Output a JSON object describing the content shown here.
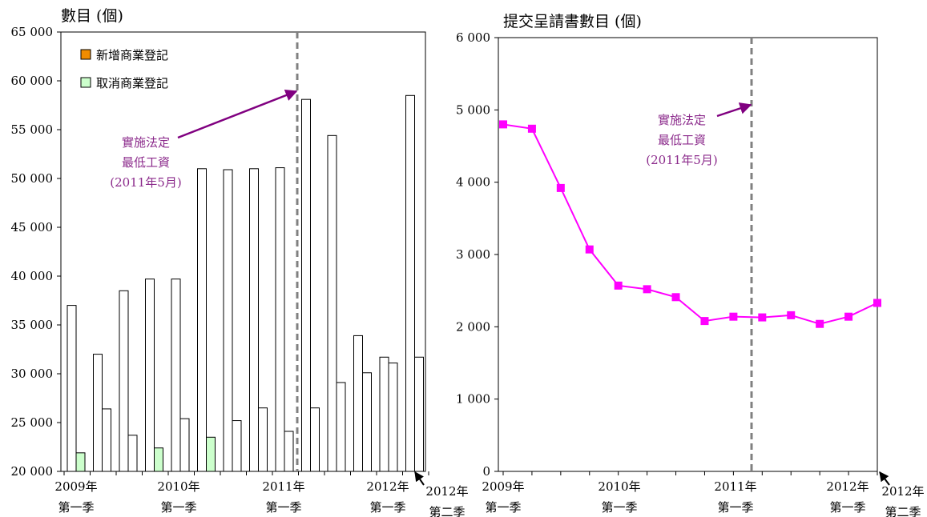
{
  "chart_data": [
    {
      "type": "bar",
      "title": "數目 (個)",
      "categories": [
        "2009Q1",
        "2009Q2",
        "2009Q3",
        "2009Q4",
        "2010Q1",
        "2010Q2",
        "2010Q3",
        "2010Q4",
        "2011Q1",
        "2011Q2",
        "2011Q3",
        "2011Q4",
        "2012Q1",
        "2012Q2"
      ],
      "series": [
        {
          "name": "新增商業登記",
          "color": "#f08c00",
          "values": [
            37000,
            32000,
            38500,
            39700,
            39700,
            51000,
            50900,
            51000,
            51100,
            58100,
            54400,
            33900,
            31700,
            58500
          ]
        },
        {
          "name": "取消商業登記",
          "color": "#ccffcc",
          "values": [
            21900,
            26400,
            23700,
            22400,
            25400,
            23500,
            25200,
            26500,
            24100,
            26500,
            29100,
            30100,
            31100,
            31700
          ]
        }
      ],
      "ylim": [
        20000,
        65000
      ],
      "yticks": [
        "20 000",
        "25 000",
        "30 000",
        "35 000",
        "40 000",
        "45 000",
        "50 000",
        "55 000",
        "60 000",
        "65 000"
      ],
      "xtick_labels": [
        {
          "year": "2009年",
          "quarter": "第一季"
        },
        {
          "year": "2010年",
          "quarter": "第一季"
        },
        {
          "year": "2011年",
          "quarter": "第一季"
        },
        {
          "year": "2012年",
          "quarter": "第一季"
        },
        {
          "year": "2012年",
          "quarter": "第二季"
        }
      ],
      "annotation": [
        "實施法定",
        "最低工資",
        "(2011年5月)"
      ],
      "legend_position": "top-left",
      "grid": false
    },
    {
      "type": "line",
      "title": "提交呈請書數目 (個)",
      "x": [
        "2009Q1",
        "2009Q2",
        "2009Q3",
        "2009Q4",
        "2010Q1",
        "2010Q2",
        "2010Q3",
        "2010Q4",
        "2011Q1",
        "2011Q2",
        "2011Q3",
        "2011Q4",
        "2012Q1",
        "2012Q2"
      ],
      "series": [
        {
          "color": "#ff00ff",
          "values": [
            4800,
            4740,
            3920,
            3070,
            2570,
            2520,
            2410,
            2080,
            2140,
            2130,
            2160,
            2040,
            2140,
            2330
          ]
        }
      ],
      "ylim": [
        0,
        6000
      ],
      "yticks": [
        "0",
        "1 000",
        "2 000",
        "3 000",
        "4 000",
        "5 000",
        "6 000"
      ],
      "xtick_labels": [
        {
          "year": "2009年",
          "quarter": "第一季"
        },
        {
          "year": "2010年",
          "quarter": "第一季"
        },
        {
          "year": "2011年",
          "quarter": "第一季"
        },
        {
          "year": "2012年",
          "quarter": "第一季"
        },
        {
          "year": "2012年",
          "quarter": "第二季"
        }
      ],
      "annotation": [
        "實施法定",
        "最低工資",
        "(2011年5月)"
      ],
      "grid": false
    }
  ]
}
